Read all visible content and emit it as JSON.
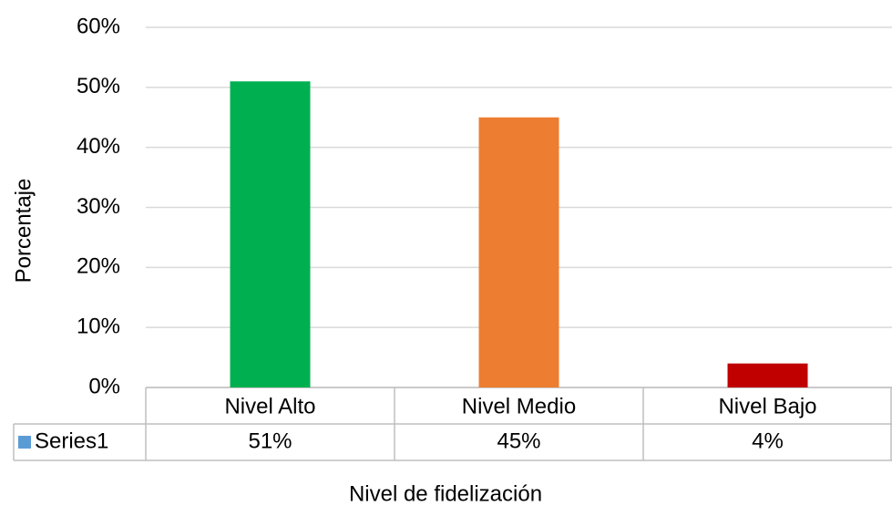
{
  "chart_data": {
    "type": "bar",
    "categories": [
      "Nivel Alto",
      "Nivel Medio",
      "Nivel Bajo"
    ],
    "series": [
      {
        "name": "Series1",
        "color": "#5b9bd5",
        "colors": [
          "#00b050",
          "#ed7d31",
          "#c00000"
        ],
        "values": [
          51,
          45,
          4
        ],
        "value_labels": [
          "51%",
          "45%",
          "4%"
        ]
      }
    ],
    "ylim": [
      0,
      60
    ],
    "yticks": [
      {
        "value": 0,
        "label": "0%"
      },
      {
        "value": 10,
        "label": "10%"
      },
      {
        "value": 20,
        "label": "20%"
      },
      {
        "value": 30,
        "label": "30%"
      },
      {
        "value": 40,
        "label": "40%"
      },
      {
        "value": 50,
        "label": "50%"
      },
      {
        "value": 60,
        "label": "60%"
      }
    ],
    "xlabel": "Nivel de fidelización",
    "ylabel": "Porcentaje",
    "grid": true
  }
}
